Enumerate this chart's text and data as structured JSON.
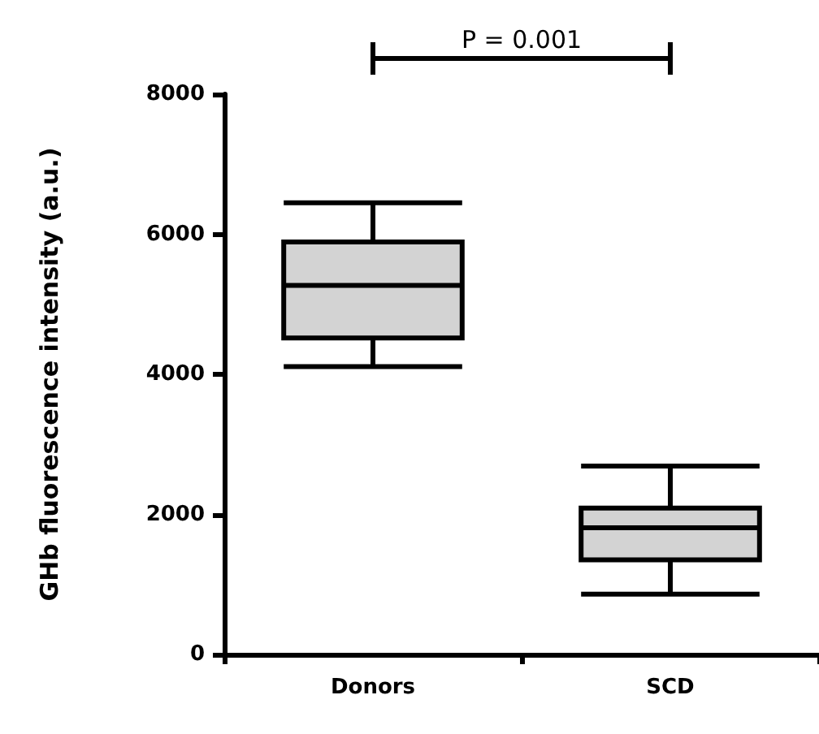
{
  "chart_data": {
    "type": "box",
    "ylabel": "GHb fluorescence intensity (a.u.)",
    "categories": [
      "Donors",
      "SCD"
    ],
    "color": "#d3d3d3",
    "boxes": [
      {
        "low": 4110,
        "q1": 4520,
        "median": 5270,
        "q3": 5890,
        "high": 6450
      },
      {
        "low": 860,
        "q1": 1350,
        "median": 1810,
        "q3": 2090,
        "high": 2690
      }
    ],
    "ylim": [
      0,
      8000
    ],
    "yticks": [
      0,
      2000,
      4000,
      6000,
      8000
    ],
    "grid": false,
    "annotations": [
      "P = 0.001"
    ]
  }
}
